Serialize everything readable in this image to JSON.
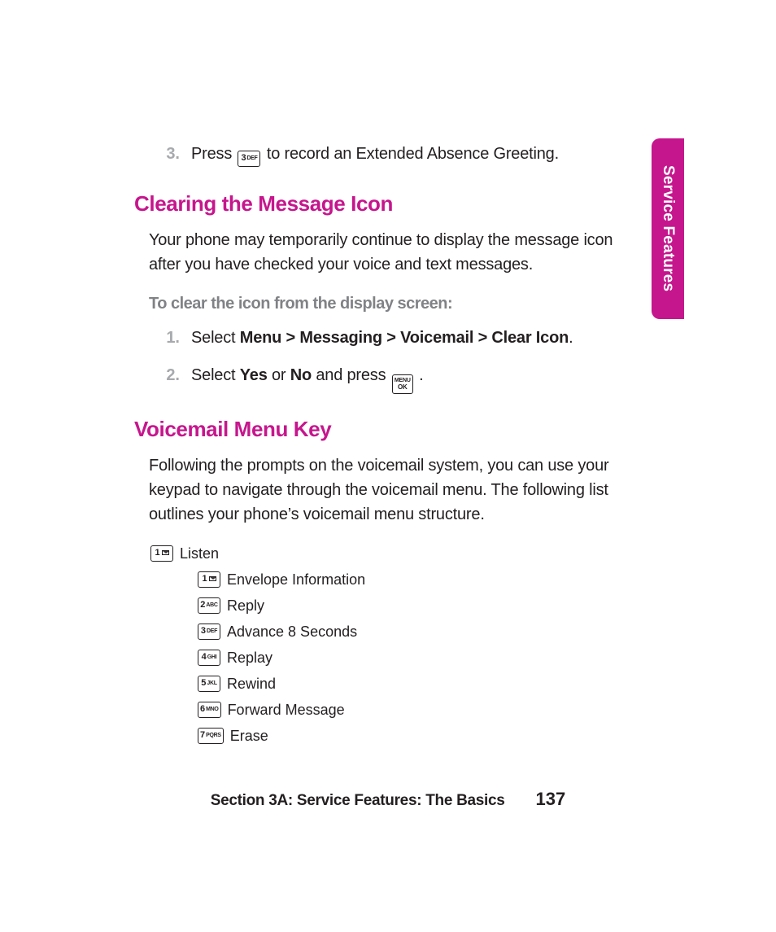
{
  "colors": {
    "accent": "#c6168d",
    "body": "#231f20",
    "muted_num": "#a7a9ac",
    "subhead": "#808285",
    "bg": "#ffffff"
  },
  "side_tab": {
    "label": "Service Features"
  },
  "step3": {
    "num": "3.",
    "pre": "Press ",
    "key": {
      "n": "3",
      "t": "DEF"
    },
    "post": " to record an Extended Absence Greeting."
  },
  "h_clearing": "Clearing the Message Icon",
  "p_clearing": "Your phone may temporarily continue to display the message icon after you have checked your voice and text messages.",
  "sub_clear": "To clear the icon from the display screen:",
  "clear_steps": {
    "s1": {
      "num": "1.",
      "pre": "Select ",
      "bold": "Menu >  Messaging > Voicemail > Clear Icon",
      "post": "."
    },
    "s2": {
      "num": "2.",
      "pre": "Select ",
      "b1": "Yes",
      "mid1": " or ",
      "b2": "No",
      "mid2": " and press ",
      "key": {
        "l1": "MENU",
        "l2": "OK"
      },
      "post": " ."
    }
  },
  "h_vmkey": "Voicemail Menu Key",
  "p_vmkey": "Following the prompts on the voicemail system, you can use your keypad to navigate through the voicemail menu. The following list outlines your phone’s voicemail menu structure.",
  "tree": {
    "root": {
      "key": {
        "n": "1",
        "icon": "envelope"
      },
      "label": "Listen"
    },
    "items": [
      {
        "key": {
          "n": "1",
          "icon": "envelope"
        },
        "label": "Envelope Information"
      },
      {
        "key": {
          "n": "2",
          "t": "ABC"
        },
        "label": "Reply"
      },
      {
        "key": {
          "n": "3",
          "t": "DEF"
        },
        "label": "Advance 8 Seconds"
      },
      {
        "key": {
          "n": "4",
          "t": "GHI"
        },
        "label": "Replay"
      },
      {
        "key": {
          "n": "5",
          "t": "JKL"
        },
        "label": "Rewind"
      },
      {
        "key": {
          "n": "6",
          "t": "MNO"
        },
        "label": "Forward Message"
      },
      {
        "key": {
          "n": "7",
          "t": "PQRS"
        },
        "label": "Erase"
      }
    ]
  },
  "footer": {
    "section": "Section 3A: Service Features: The Basics",
    "page": "137"
  }
}
